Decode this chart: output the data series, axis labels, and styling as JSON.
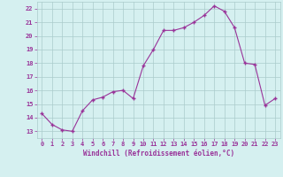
{
  "x": [
    0,
    1,
    2,
    3,
    4,
    5,
    6,
    7,
    8,
    9,
    10,
    11,
    12,
    13,
    14,
    15,
    16,
    17,
    18,
    19,
    20,
    21,
    22,
    23
  ],
  "y": [
    14.3,
    13.5,
    13.1,
    13.0,
    14.5,
    15.3,
    15.5,
    15.9,
    16.0,
    15.4,
    17.8,
    19.0,
    20.4,
    20.4,
    20.6,
    21.0,
    21.5,
    22.2,
    21.8,
    20.6,
    18.0,
    17.9,
    14.9,
    15.4
  ],
  "line_color": "#993399",
  "marker": "+",
  "bg_color": "#d5f0f0",
  "grid_color": "#aacccc",
  "xlabel": "Windchill (Refroidissement éolien,°C)",
  "xlabel_color": "#993399",
  "tick_color": "#993399",
  "ylim": [
    12.5,
    22.5
  ],
  "xlim": [
    -0.5,
    23.5
  ],
  "yticks": [
    13,
    14,
    15,
    16,
    17,
    18,
    19,
    20,
    21,
    22
  ],
  "xticks": [
    0,
    1,
    2,
    3,
    4,
    5,
    6,
    7,
    8,
    9,
    10,
    11,
    12,
    13,
    14,
    15,
    16,
    17,
    18,
    19,
    20,
    21,
    22,
    23
  ]
}
